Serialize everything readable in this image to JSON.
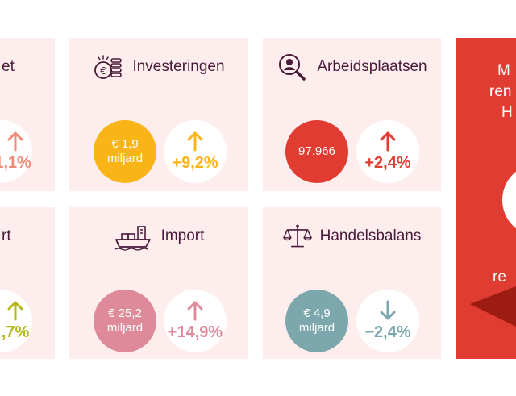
{
  "cards": {
    "left_top": {
      "title_fragment": "et",
      "pct": "1,1%",
      "color": "#f08a78"
    },
    "left_bottom": {
      "title_fragment": "rt",
      "pct": ",7%",
      "color": "#b3b81a"
    },
    "investeringen": {
      "title": "Investeringen",
      "icon": "coins-euro-icon",
      "value_line1": "€ 1,9",
      "value_line2": "miljard",
      "pct": "+9,2%",
      "direction": "up",
      "color": "#f9b517"
    },
    "arbeidsplaatsen": {
      "title": "Arbeidsplaatsen",
      "icon": "person-search-icon",
      "value_line1": "97.966",
      "pct": "+2,4%",
      "direction": "up",
      "color": "#e03c31"
    },
    "import": {
      "title": "Import",
      "icon": "cargo-ship-icon",
      "value_line1": "€ 25,2",
      "value_line2": "miljard",
      "pct": "+14,9%",
      "direction": "up",
      "color": "#de8a9b"
    },
    "handelsbalans": {
      "title": "Handelsbalans",
      "icon": "balance-scale-icon",
      "value_line1": "€ 4,9",
      "value_line2": "miljard",
      "pct": "−2,4%",
      "direction": "down",
      "color": "#7ca8ad"
    }
  },
  "red_panel": {
    "line1": "M",
    "line2": "ren",
    "line3": "H",
    "line4": "re",
    "color": "#e03c31"
  },
  "colors": {
    "card_bg": "#fdeeed",
    "title_text": "#4a1a3a"
  }
}
